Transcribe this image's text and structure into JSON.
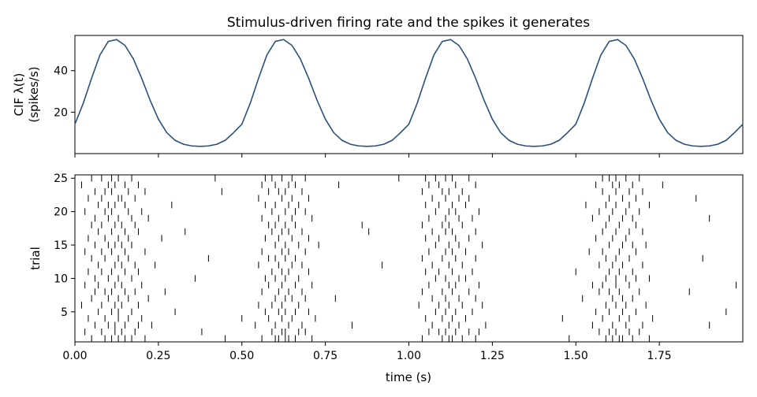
{
  "chart_data": [
    {
      "type": "line",
      "title": "Stimulus-driven firing rate and the spikes it generates",
      "ylabel_line1": "CIF λ(t)",
      "ylabel_line2": "(spikes/s)",
      "xlim": [
        0,
        2.0
      ],
      "ylim": [
        0,
        57
      ],
      "yticks": [
        20,
        40
      ],
      "ytick_labels": [
        "20",
        "40"
      ],
      "series": [
        {
          "color": "#2b4f7e",
          "x": [
            0.0,
            0.025,
            0.05,
            0.075,
            0.1,
            0.125,
            0.15,
            0.175,
            0.2,
            0.225,
            0.25,
            0.275,
            0.3,
            0.325,
            0.35,
            0.375,
            0.4,
            0.425,
            0.45,
            0.475,
            0.5,
            0.525,
            0.55,
            0.575,
            0.6,
            0.625,
            0.65,
            0.675,
            0.7,
            0.725,
            0.75,
            0.775,
            0.8,
            0.825,
            0.85,
            0.875,
            0.9,
            0.925,
            0.95,
            0.975,
            1.0,
            1.025,
            1.05,
            1.075,
            1.1,
            1.125,
            1.15,
            1.175,
            1.2,
            1.225,
            1.25,
            1.275,
            1.3,
            1.325,
            1.35,
            1.375,
            1.4,
            1.425,
            1.45,
            1.475,
            1.5,
            1.525,
            1.55,
            1.575,
            1.6,
            1.625,
            1.65,
            1.675,
            1.7,
            1.725,
            1.75,
            1.775,
            1.8,
            1.825,
            1.85,
            1.875,
            1.9,
            1.925,
            1.95,
            1.975,
            2.0
          ],
          "y": [
            14.2,
            24.3,
            36.4,
            47.6,
            54.1,
            55.0,
            52.2,
            45.7,
            36.3,
            25.8,
            16.6,
            10.1,
            6.4,
            4.5,
            3.7,
            3.5,
            3.7,
            4.5,
            6.4,
            10.1,
            14.2,
            24.3,
            36.4,
            47.6,
            54.1,
            55.0,
            52.2,
            45.7,
            36.3,
            25.8,
            16.6,
            10.1,
            6.4,
            4.5,
            3.7,
            3.5,
            3.7,
            4.5,
            6.4,
            10.1,
            14.2,
            24.3,
            36.4,
            47.6,
            54.1,
            55.0,
            52.2,
            45.7,
            36.3,
            25.8,
            16.6,
            10.1,
            6.4,
            4.5,
            3.7,
            3.5,
            3.7,
            4.5,
            6.4,
            10.1,
            14.2,
            24.3,
            36.4,
            47.6,
            54.1,
            55.0,
            52.2,
            45.7,
            36.3,
            25.8,
            16.6,
            10.1,
            6.4,
            4.5,
            3.7,
            3.5,
            3.7,
            4.5,
            6.4,
            10.1,
            14.2
          ]
        }
      ]
    },
    {
      "type": "scatter",
      "marker": "vertical-tick",
      "xlabel": "time (s)",
      "ylabel": "trial",
      "xlim": [
        0,
        2.0
      ],
      "ylim": [
        0.5,
        25.5
      ],
      "xticks": [
        0,
        0.25,
        0.5,
        0.75,
        1.0,
        1.25,
        1.5,
        1.75
      ],
      "xtick_labels": [
        "0.00",
        "0.25",
        "0.50",
        "0.75",
        "1.00",
        "1.25",
        "1.50",
        "1.75"
      ],
      "yticks": [
        5,
        10,
        15,
        20,
        25
      ],
      "ytick_labels": [
        "5",
        "10",
        "15",
        "20",
        "25"
      ],
      "trials": 25,
      "spike_color": "#000000",
      "spike_times": [
        [
          0.05,
          0.09,
          0.11,
          0.13,
          0.15,
          0.17,
          0.21,
          0.45,
          0.56,
          0.6,
          0.61,
          0.63,
          0.64,
          0.66,
          0.71,
          1.04,
          1.1,
          1.12,
          1.13,
          1.16,
          1.2,
          1.48,
          1.59,
          1.61,
          1.63,
          1.64,
          1.67,
          1.72
        ],
        [
          0.03,
          0.08,
          0.12,
          0.14,
          0.18,
          0.38,
          0.59,
          0.62,
          0.63,
          0.67,
          0.69,
          1.06,
          1.09,
          1.11,
          1.14,
          1.18,
          1.21,
          1.57,
          1.6,
          1.62,
          1.66,
          1.69
        ],
        [
          0.06,
          0.1,
          0.12,
          0.15,
          0.19,
          0.23,
          0.54,
          0.6,
          0.64,
          0.68,
          0.83,
          1.07,
          1.12,
          1.15,
          1.23,
          1.55,
          1.61,
          1.65,
          1.7,
          1.9
        ],
        [
          0.04,
          0.09,
          0.13,
          0.16,
          0.2,
          0.5,
          0.58,
          0.62,
          0.65,
          0.72,
          1.05,
          1.1,
          1.13,
          1.17,
          1.46,
          1.58,
          1.63,
          1.66,
          1.73
        ],
        [
          0.07,
          0.11,
          0.13,
          0.17,
          0.3,
          0.57,
          0.61,
          0.63,
          0.66,
          0.7,
          1.08,
          1.11,
          1.14,
          1.19,
          1.56,
          1.6,
          1.64,
          1.68,
          1.95
        ],
        [
          0.02,
          0.08,
          0.12,
          0.14,
          0.19,
          0.55,
          0.59,
          0.62,
          0.67,
          1.03,
          1.09,
          1.12,
          1.16,
          1.22,
          1.59,
          1.62,
          1.65,
          1.71
        ],
        [
          0.05,
          0.1,
          0.13,
          0.16,
          0.22,
          0.6,
          0.63,
          0.65,
          0.69,
          0.78,
          1.07,
          1.11,
          1.15,
          1.2,
          1.52,
          1.61,
          1.64,
          1.67
        ],
        [
          0.06,
          0.09,
          0.11,
          0.15,
          0.18,
          0.27,
          0.56,
          0.61,
          0.64,
          0.68,
          1.04,
          1.1,
          1.13,
          1.18,
          1.57,
          1.6,
          1.63,
          1.69,
          1.84
        ],
        [
          0.03,
          0.07,
          0.12,
          0.14,
          0.2,
          0.58,
          0.62,
          0.66,
          0.71,
          1.06,
          1.12,
          1.14,
          1.21,
          1.55,
          1.58,
          1.62,
          1.66,
          1.98
        ],
        [
          0.06,
          0.1,
          0.13,
          0.17,
          0.36,
          0.57,
          0.6,
          0.63,
          0.67,
          1.08,
          1.11,
          1.15,
          1.17,
          1.59,
          1.62,
          1.65,
          1.68,
          1.72
        ],
        [
          0.04,
          0.08,
          0.11,
          0.15,
          0.19,
          0.59,
          0.62,
          0.64,
          0.7,
          1.05,
          1.09,
          1.13,
          1.19,
          1.5,
          1.6,
          1.63,
          1.67
        ],
        [
          0.07,
          0.12,
          0.14,
          0.18,
          0.24,
          0.55,
          0.61,
          0.65,
          0.68,
          0.92,
          1.07,
          1.12,
          1.16,
          1.57,
          1.61,
          1.64,
          1.7
        ],
        [
          0.05,
          0.09,
          0.13,
          0.16,
          0.4,
          0.58,
          0.6,
          0.63,
          0.66,
          1.04,
          1.1,
          1.14,
          1.2,
          1.59,
          1.62,
          1.66,
          1.88
        ],
        [
          0.03,
          0.08,
          0.11,
          0.15,
          0.21,
          0.56,
          0.62,
          0.64,
          0.69,
          1.06,
          1.11,
          1.13,
          1.17,
          1.54,
          1.58,
          1.63,
          1.68
        ],
        [
          0.06,
          0.1,
          0.12,
          0.14,
          0.17,
          0.6,
          0.63,
          0.67,
          0.73,
          1.08,
          1.12,
          1.15,
          1.22,
          1.6,
          1.64,
          1.67,
          1.71
        ],
        [
          0.04,
          0.09,
          0.13,
          0.16,
          0.26,
          0.57,
          0.61,
          0.65,
          0.7,
          1.05,
          1.09,
          1.14,
          1.18,
          1.56,
          1.61,
          1.65
        ],
        [
          0.0,
          0.07,
          0.11,
          0.15,
          0.19,
          0.33,
          0.59,
          0.62,
          0.64,
          0.68,
          0.88,
          1.07,
          1.11,
          1.13,
          1.2,
          1.58,
          1.62,
          1.66,
          1.7
        ],
        [
          0.05,
          0.08,
          0.12,
          0.14,
          0.18,
          0.58,
          0.6,
          0.63,
          0.66,
          0.86,
          1.04,
          1.1,
          1.12,
          1.16,
          1.59,
          1.63,
          1.68
        ],
        [
          0.06,
          0.1,
          0.13,
          0.17,
          0.22,
          0.56,
          0.61,
          0.65,
          0.71,
          1.06,
          1.11,
          1.15,
          1.19,
          1.55,
          1.6,
          1.64,
          1.67,
          1.9
        ],
        [
          0.03,
          0.09,
          0.11,
          0.16,
          0.2,
          0.59,
          0.63,
          0.66,
          0.69,
          1.08,
          1.12,
          1.14,
          1.21,
          1.57,
          1.61,
          1.65,
          1.69
        ],
        [
          0.07,
          0.1,
          0.12,
          0.15,
          0.29,
          0.57,
          0.6,
          0.64,
          0.67,
          1.05,
          1.09,
          1.13,
          1.17,
          1.53,
          1.59,
          1.62,
          1.66,
          1.72
        ],
        [
          0.04,
          0.08,
          0.13,
          0.14,
          0.18,
          0.55,
          0.62,
          0.65,
          0.7,
          1.07,
          1.11,
          1.15,
          1.18,
          1.6,
          1.64,
          1.68,
          1.86
        ],
        [
          0.06,
          0.09,
          0.11,
          0.16,
          0.21,
          0.44,
          0.58,
          0.61,
          0.63,
          0.68,
          1.04,
          1.1,
          1.12,
          1.16,
          1.58,
          1.62,
          1.66,
          1.7
        ],
        [
          0.02,
          0.1,
          0.12,
          0.15,
          0.19,
          0.56,
          0.6,
          0.64,
          0.66,
          0.79,
          1.06,
          1.09,
          1.14,
          1.2,
          1.56,
          1.61,
          1.63,
          1.67,
          1.76
        ],
        [
          0.05,
          0.08,
          0.11,
          0.13,
          0.17,
          0.42,
          0.57,
          0.59,
          0.62,
          0.65,
          0.69,
          0.97,
          1.05,
          1.08,
          1.11,
          1.13,
          1.18,
          1.58,
          1.6,
          1.62,
          1.65,
          1.69
        ]
      ]
    }
  ]
}
